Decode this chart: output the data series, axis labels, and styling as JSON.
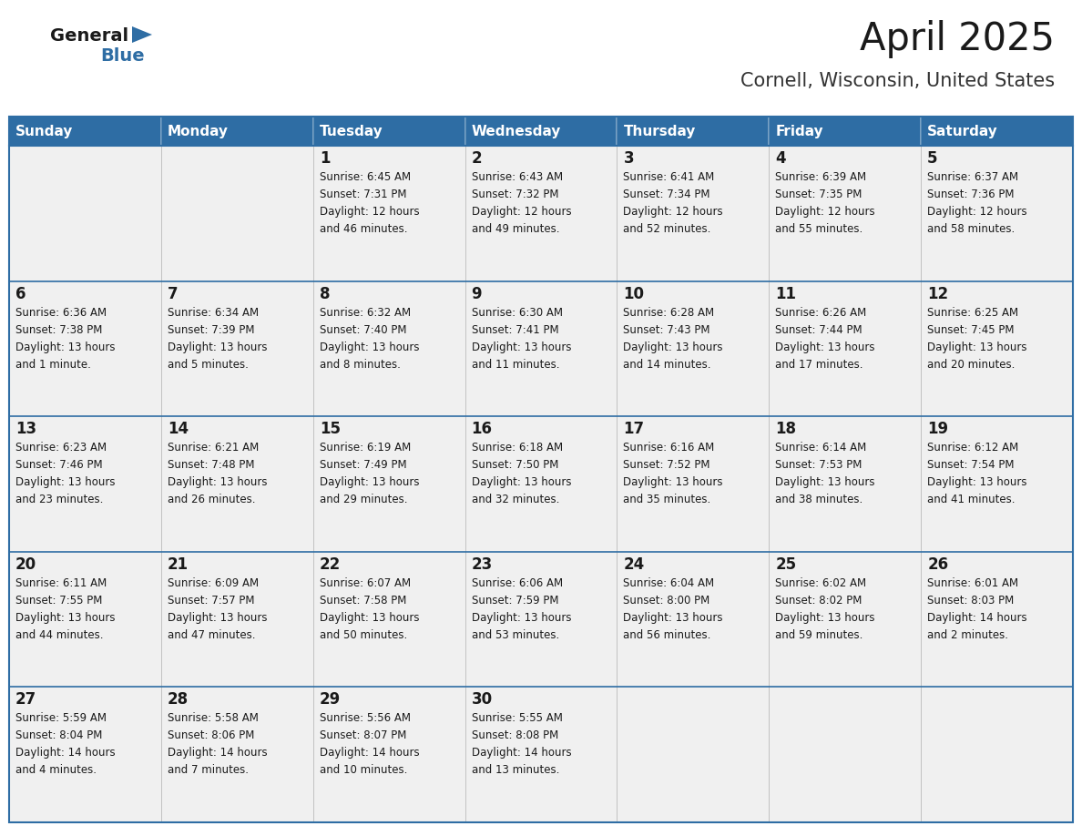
{
  "title": "April 2025",
  "subtitle": "Cornell, Wisconsin, United States",
  "header_bg": "#2E6DA4",
  "header_text_color": "#FFFFFF",
  "cell_bg": "#F0F0F0",
  "border_color": "#2E6DA4",
  "day_headers": [
    "Sunday",
    "Monday",
    "Tuesday",
    "Wednesday",
    "Thursday",
    "Friday",
    "Saturday"
  ],
  "title_color": "#1a1a1a",
  "subtitle_color": "#333333",
  "cell_text_color": "#1a1a1a",
  "logo_general_color": "#1a1a1a",
  "logo_blue_color": "#2E6DA4",
  "fig_width": 11.88,
  "fig_height": 9.18,
  "dpi": 100,
  "weeks": [
    [
      {
        "day": "",
        "info": ""
      },
      {
        "day": "",
        "info": ""
      },
      {
        "day": "1",
        "info": "Sunrise: 6:45 AM\nSunset: 7:31 PM\nDaylight: 12 hours\nand 46 minutes."
      },
      {
        "day": "2",
        "info": "Sunrise: 6:43 AM\nSunset: 7:32 PM\nDaylight: 12 hours\nand 49 minutes."
      },
      {
        "day": "3",
        "info": "Sunrise: 6:41 AM\nSunset: 7:34 PM\nDaylight: 12 hours\nand 52 minutes."
      },
      {
        "day": "4",
        "info": "Sunrise: 6:39 AM\nSunset: 7:35 PM\nDaylight: 12 hours\nand 55 minutes."
      },
      {
        "day": "5",
        "info": "Sunrise: 6:37 AM\nSunset: 7:36 PM\nDaylight: 12 hours\nand 58 minutes."
      }
    ],
    [
      {
        "day": "6",
        "info": "Sunrise: 6:36 AM\nSunset: 7:38 PM\nDaylight: 13 hours\nand 1 minute."
      },
      {
        "day": "7",
        "info": "Sunrise: 6:34 AM\nSunset: 7:39 PM\nDaylight: 13 hours\nand 5 minutes."
      },
      {
        "day": "8",
        "info": "Sunrise: 6:32 AM\nSunset: 7:40 PM\nDaylight: 13 hours\nand 8 minutes."
      },
      {
        "day": "9",
        "info": "Sunrise: 6:30 AM\nSunset: 7:41 PM\nDaylight: 13 hours\nand 11 minutes."
      },
      {
        "day": "10",
        "info": "Sunrise: 6:28 AM\nSunset: 7:43 PM\nDaylight: 13 hours\nand 14 minutes."
      },
      {
        "day": "11",
        "info": "Sunrise: 6:26 AM\nSunset: 7:44 PM\nDaylight: 13 hours\nand 17 minutes."
      },
      {
        "day": "12",
        "info": "Sunrise: 6:25 AM\nSunset: 7:45 PM\nDaylight: 13 hours\nand 20 minutes."
      }
    ],
    [
      {
        "day": "13",
        "info": "Sunrise: 6:23 AM\nSunset: 7:46 PM\nDaylight: 13 hours\nand 23 minutes."
      },
      {
        "day": "14",
        "info": "Sunrise: 6:21 AM\nSunset: 7:48 PM\nDaylight: 13 hours\nand 26 minutes."
      },
      {
        "day": "15",
        "info": "Sunrise: 6:19 AM\nSunset: 7:49 PM\nDaylight: 13 hours\nand 29 minutes."
      },
      {
        "day": "16",
        "info": "Sunrise: 6:18 AM\nSunset: 7:50 PM\nDaylight: 13 hours\nand 32 minutes."
      },
      {
        "day": "17",
        "info": "Sunrise: 6:16 AM\nSunset: 7:52 PM\nDaylight: 13 hours\nand 35 minutes."
      },
      {
        "day": "18",
        "info": "Sunrise: 6:14 AM\nSunset: 7:53 PM\nDaylight: 13 hours\nand 38 minutes."
      },
      {
        "day": "19",
        "info": "Sunrise: 6:12 AM\nSunset: 7:54 PM\nDaylight: 13 hours\nand 41 minutes."
      }
    ],
    [
      {
        "day": "20",
        "info": "Sunrise: 6:11 AM\nSunset: 7:55 PM\nDaylight: 13 hours\nand 44 minutes."
      },
      {
        "day": "21",
        "info": "Sunrise: 6:09 AM\nSunset: 7:57 PM\nDaylight: 13 hours\nand 47 minutes."
      },
      {
        "day": "22",
        "info": "Sunrise: 6:07 AM\nSunset: 7:58 PM\nDaylight: 13 hours\nand 50 minutes."
      },
      {
        "day": "23",
        "info": "Sunrise: 6:06 AM\nSunset: 7:59 PM\nDaylight: 13 hours\nand 53 minutes."
      },
      {
        "day": "24",
        "info": "Sunrise: 6:04 AM\nSunset: 8:00 PM\nDaylight: 13 hours\nand 56 minutes."
      },
      {
        "day": "25",
        "info": "Sunrise: 6:02 AM\nSunset: 8:02 PM\nDaylight: 13 hours\nand 59 minutes."
      },
      {
        "day": "26",
        "info": "Sunrise: 6:01 AM\nSunset: 8:03 PM\nDaylight: 14 hours\nand 2 minutes."
      }
    ],
    [
      {
        "day": "27",
        "info": "Sunrise: 5:59 AM\nSunset: 8:04 PM\nDaylight: 14 hours\nand 4 minutes."
      },
      {
        "day": "28",
        "info": "Sunrise: 5:58 AM\nSunset: 8:06 PM\nDaylight: 14 hours\nand 7 minutes."
      },
      {
        "day": "29",
        "info": "Sunrise: 5:56 AM\nSunset: 8:07 PM\nDaylight: 14 hours\nand 10 minutes."
      },
      {
        "day": "30",
        "info": "Sunrise: 5:55 AM\nSunset: 8:08 PM\nDaylight: 14 hours\nand 13 minutes."
      },
      {
        "day": "",
        "info": ""
      },
      {
        "day": "",
        "info": ""
      },
      {
        "day": "",
        "info": ""
      }
    ]
  ]
}
